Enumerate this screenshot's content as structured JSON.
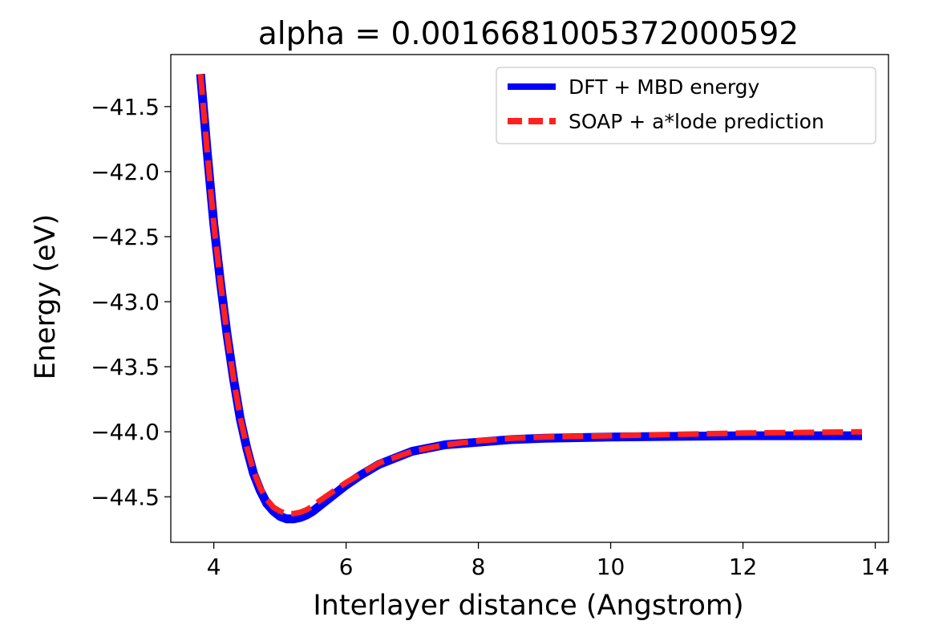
{
  "chart_data": {
    "type": "line",
    "title": "alpha = 0.0016681005372000592",
    "xlabel": "Interlayer distance (Angstrom)",
    "ylabel": "Energy (eV)",
    "xlim": [
      3.35,
      14.2
    ],
    "ylim": [
      -44.85,
      -41.1
    ],
    "xticks": [
      4,
      6,
      8,
      10,
      12,
      14
    ],
    "yticks": [
      -41.5,
      -42.0,
      -42.5,
      -43.0,
      -43.5,
      -44.0,
      -44.5
    ],
    "legend": {
      "placement": "upper-right"
    },
    "grid": false,
    "series": [
      {
        "name": "DFT + MBD energy",
        "color": "#0000ff",
        "style": "solid",
        "x": [
          3.8,
          3.9,
          4.0,
          4.1,
          4.2,
          4.3,
          4.4,
          4.5,
          4.6,
          4.7,
          4.8,
          4.9,
          5.0,
          5.1,
          5.2,
          5.3,
          5.4,
          5.5,
          5.6,
          5.8,
          6.0,
          6.2,
          6.5,
          7.0,
          7.5,
          8.0,
          8.5,
          9.0,
          10.0,
          11.0,
          12.0,
          13.0,
          13.8
        ],
        "y": [
          -41.25,
          -41.85,
          -42.4,
          -42.85,
          -43.25,
          -43.6,
          -43.9,
          -44.13,
          -44.32,
          -44.45,
          -44.55,
          -44.61,
          -44.65,
          -44.67,
          -44.67,
          -44.66,
          -44.64,
          -44.61,
          -44.57,
          -44.49,
          -44.41,
          -44.34,
          -44.25,
          -44.15,
          -44.1,
          -44.08,
          -44.06,
          -44.05,
          -44.04,
          -44.035,
          -44.03,
          -44.03,
          -44.03
        ]
      },
      {
        "name": "SOAP + a*lode prediction",
        "color": "#ff2020",
        "style": "dashed",
        "x": [
          3.8,
          3.9,
          4.0,
          4.1,
          4.2,
          4.3,
          4.4,
          4.5,
          4.6,
          4.7,
          4.8,
          4.9,
          5.0,
          5.1,
          5.2,
          5.3,
          5.4,
          5.5,
          5.6,
          5.8,
          6.0,
          6.2,
          6.5,
          7.0,
          7.5,
          8.0,
          8.5,
          9.0,
          10.0,
          11.0,
          12.0,
          13.0,
          13.8
        ],
        "y": [
          -41.25,
          -41.85,
          -42.4,
          -42.85,
          -43.25,
          -43.6,
          -43.89,
          -44.12,
          -44.3,
          -44.43,
          -44.52,
          -44.58,
          -44.61,
          -44.63,
          -44.63,
          -44.62,
          -44.6,
          -44.57,
          -44.53,
          -44.46,
          -44.39,
          -44.33,
          -44.24,
          -44.15,
          -44.1,
          -44.07,
          -44.05,
          -44.04,
          -44.03,
          -44.02,
          -44.01,
          -44.005,
          -44.0
        ]
      }
    ]
  }
}
